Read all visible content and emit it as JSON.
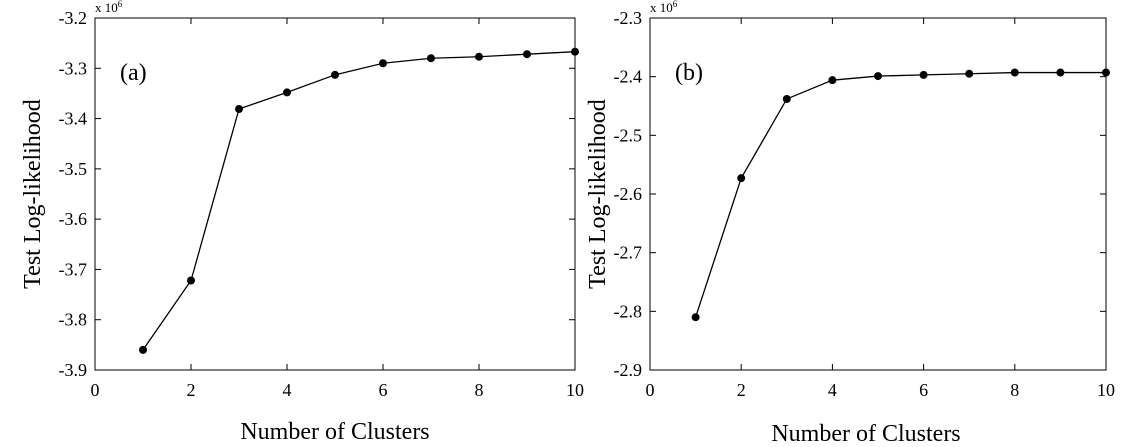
{
  "chart_data": [
    {
      "type": "line",
      "panel_label": "(a)",
      "xlabel": "Number of Clusters",
      "ylabel": "Test Log-likelihood",
      "scale_base": "x 10",
      "scale_exp": "6",
      "xlim": [
        0,
        10
      ],
      "ylim": [
        -3.9,
        -3.2
      ],
      "xticks": [
        0,
        2,
        4,
        6,
        8,
        10
      ],
      "xtick_labels": [
        "0",
        "2",
        "4",
        "6",
        "8",
        "10"
      ],
      "yticks": [
        -3.9,
        -3.8,
        -3.7,
        -3.6,
        -3.5,
        -3.4,
        -3.3,
        -3.2
      ],
      "ytick_labels": [
        "-3.9",
        "-3.8",
        "-3.7",
        "-3.6",
        "-3.5",
        "-3.4",
        "-3.3",
        "-3.2"
      ],
      "grid": false,
      "series": [
        {
          "x": [
            1,
            2,
            3,
            4,
            5,
            6,
            7,
            8,
            9,
            10
          ],
          "y": [
            -3.86,
            -3.722,
            -3.381,
            -3.348,
            -3.313,
            -3.29,
            -3.28,
            -3.277,
            -3.272,
            -3.267
          ]
        }
      ]
    },
    {
      "type": "line",
      "panel_label": "(b)",
      "xlabel": "Number of Clusters",
      "ylabel": "Test Log-likelihood",
      "scale_base": "x 10",
      "scale_exp": "6",
      "xlim": [
        0,
        10
      ],
      "ylim": [
        -2.9,
        -2.3
      ],
      "xticks": [
        0,
        2,
        4,
        6,
        8,
        10
      ],
      "xtick_labels": [
        "0",
        "2",
        "4",
        "6",
        "8",
        "10"
      ],
      "yticks": [
        -2.9,
        -2.8,
        -2.7,
        -2.6,
        -2.5,
        -2.4,
        -2.3
      ],
      "ytick_labels": [
        "-2.9",
        "-2.8",
        "-2.7",
        "-2.6",
        "-2.5",
        "-2.4",
        "-2.3"
      ],
      "grid": false,
      "series": [
        {
          "x": [
            1,
            2,
            3,
            4,
            5,
            6,
            7,
            8,
            9,
            10
          ],
          "y": [
            -2.81,
            -2.573,
            -2.438,
            -2.406,
            -2.399,
            -2.397,
            -2.395,
            -2.393,
            -2.393,
            -2.393
          ]
        }
      ]
    }
  ]
}
